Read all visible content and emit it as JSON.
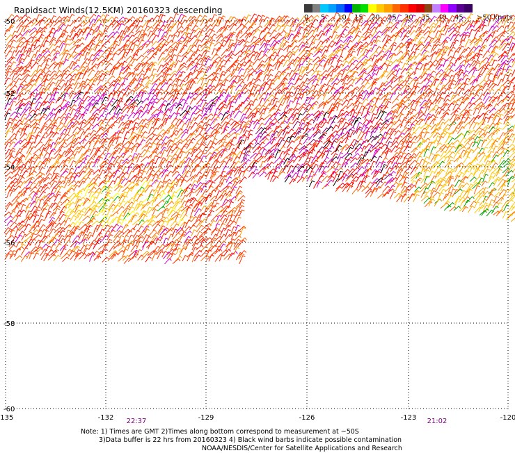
{
  "title": "Rapidsact Winds(12.5KM) 20160323 descending",
  "legend": {
    "colors": [
      "#3a3a3a",
      "#808080",
      "#00c8ff",
      "#00a0ff",
      "#0064ff",
      "#0000ff",
      "#00b400",
      "#00e000",
      "#ffff00",
      "#ffc800",
      "#ffa000",
      "#ff6400",
      "#ff3200",
      "#ff0000",
      "#d20000",
      "#8b4513",
      "#c080ff",
      "#ff00ff",
      "#9000ff",
      "#5a0090",
      "#3c0064"
    ],
    "labels": [
      "0",
      "5",
      "10",
      "15",
      "20",
      "25",
      "30",
      "35",
      "40",
      "45",
      ">50 knots"
    ]
  },
  "map": {
    "lat_labels": [
      "-50",
      "-52",
      "-54",
      "-56",
      "-58",
      "-60"
    ],
    "lon_labels": [
      "-135",
      "-132",
      "-129",
      "-126",
      "-123",
      "-120"
    ],
    "pass_times": [
      "22:37",
      "21:02"
    ]
  },
  "notes": {
    "line1": "Note: 1) Times are GMT 2)Times along bottom correspond to measurement at ~50S",
    "line2": "3)Data buffer is 22 hrs from 20160323 4) Black wind barbs indicate possible contamination",
    "line3": "NOAA/NESDIS/Center for Satellite Applications and Research"
  }
}
